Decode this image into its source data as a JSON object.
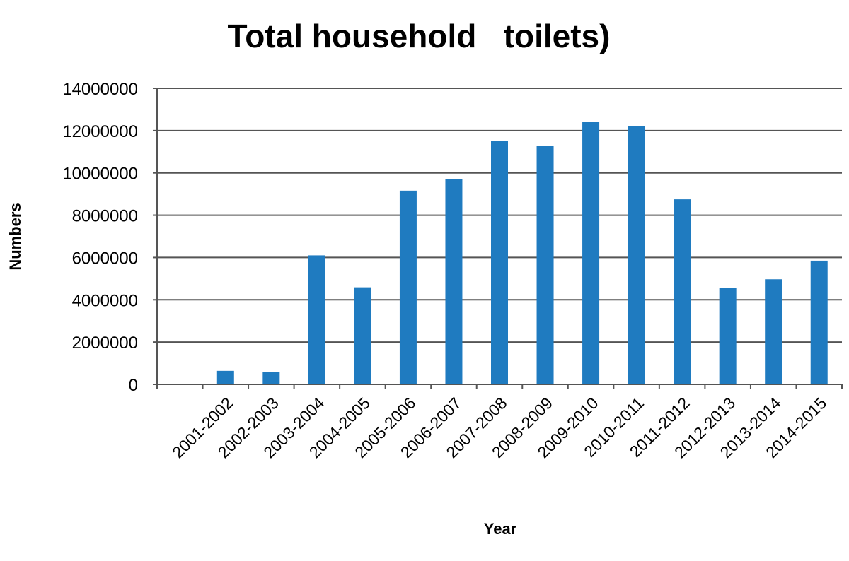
{
  "chart_data": {
    "type": "bar",
    "title": "Total household   toilets)",
    "xlabel": "Year",
    "ylabel": "Numbers",
    "categories": [
      "",
      "2001-2002",
      "2002-2003",
      "2003-2004",
      "2004-2005",
      "2005-2006",
      "2006-2007",
      "2007-2008",
      "2008-2009",
      "2009-2010",
      "2010-2011",
      "2011-2012",
      "2012-2013",
      "2013-2014",
      "2014-2015"
    ],
    "values": [
      null,
      640000,
      580000,
      6100000,
      4590000,
      9160000,
      9700000,
      11520000,
      11260000,
      12410000,
      12200000,
      8750000,
      4550000,
      4970000,
      5850000
    ],
    "ylim": [
      0,
      14000000
    ],
    "yticks": [
      "0",
      "2000000",
      "4000000",
      "6000000",
      "8000000",
      "10000000",
      "12000000",
      "14000000"
    ],
    "grid": true,
    "legend": "none",
    "bar_color": "#1f7bc0"
  }
}
